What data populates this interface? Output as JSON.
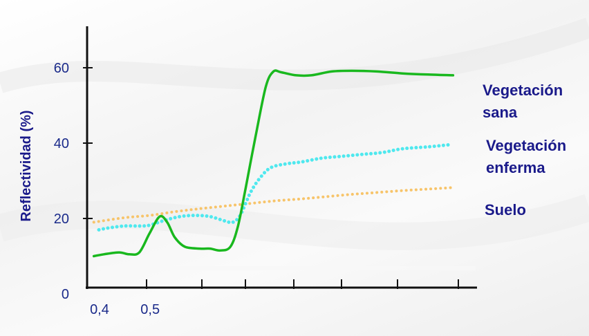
{
  "chart_data": {
    "type": "line",
    "ylabel": "Reflectividad (%)",
    "xlabel": "",
    "ylim": [
      0,
      65
    ],
    "yticks": [
      0,
      20,
      40,
      60
    ],
    "ytick_labels": [
      "0",
      "20",
      "40",
      "60"
    ],
    "xtick_labels": [
      {
        "x": 0.4,
        "label": "0,4"
      },
      {
        "x": 0.5,
        "label": "0,5"
      }
    ],
    "xlim": [
      0.385,
      1.15
    ],
    "grid": false,
    "series": [
      {
        "name": "Vegetación sana",
        "color": "#19b81e",
        "style": "solid",
        "points": [
          [
            0.39,
            10
          ],
          [
            0.41,
            10.5
          ],
          [
            0.44,
            11
          ],
          [
            0.46,
            10.5
          ],
          [
            0.48,
            11
          ],
          [
            0.5,
            16
          ],
          [
            0.52,
            20.5
          ],
          [
            0.535,
            19
          ],
          [
            0.55,
            15
          ],
          [
            0.57,
            12.5
          ],
          [
            0.6,
            12
          ],
          [
            0.62,
            12
          ],
          [
            0.64,
            11.5
          ],
          [
            0.66,
            12.5
          ],
          [
            0.675,
            18
          ],
          [
            0.69,
            28
          ],
          [
            0.71,
            42
          ],
          [
            0.73,
            55
          ],
          [
            0.745,
            59
          ],
          [
            0.76,
            58.8
          ],
          [
            0.79,
            58
          ],
          [
            0.82,
            58
          ],
          [
            0.86,
            59
          ],
          [
            0.9,
            59.2
          ],
          [
            0.95,
            59
          ],
          [
            1.0,
            58.5
          ],
          [
            1.05,
            58.2
          ],
          [
            1.1,
            58
          ]
        ]
      },
      {
        "name": "Vegetación enferma",
        "color": "#4fe8ee",
        "style": "dotted",
        "points": [
          [
            0.4,
            17
          ],
          [
            0.42,
            17.5
          ],
          [
            0.45,
            18
          ],
          [
            0.48,
            18
          ],
          [
            0.5,
            18.2
          ],
          [
            0.53,
            19.5
          ],
          [
            0.56,
            20.5
          ],
          [
            0.59,
            20.8
          ],
          [
            0.62,
            20.5
          ],
          [
            0.65,
            19.3
          ],
          [
            0.665,
            19
          ],
          [
            0.68,
            21
          ],
          [
            0.7,
            27
          ],
          [
            0.72,
            31
          ],
          [
            0.74,
            33.5
          ],
          [
            0.77,
            34.5
          ],
          [
            0.8,
            35
          ],
          [
            0.84,
            36
          ],
          [
            0.88,
            36.5
          ],
          [
            0.92,
            37
          ],
          [
            0.96,
            37.5
          ],
          [
            1.0,
            38.5
          ],
          [
            1.05,
            39
          ],
          [
            1.095,
            39.6
          ]
        ]
      },
      {
        "name": "Suelo",
        "color": "#f7c46a",
        "style": "dotted",
        "points": [
          [
            0.39,
            19
          ],
          [
            0.45,
            20.2
          ],
          [
            0.5,
            20.8
          ],
          [
            0.55,
            21.8
          ],
          [
            0.6,
            22.6
          ],
          [
            0.65,
            23.3
          ],
          [
            0.7,
            24
          ],
          [
            0.75,
            24.7
          ],
          [
            0.8,
            25.2
          ],
          [
            0.85,
            25.8
          ],
          [
            0.9,
            26.4
          ],
          [
            0.95,
            26.9
          ],
          [
            1.0,
            27.4
          ],
          [
            1.05,
            27.8
          ],
          [
            1.1,
            28.2
          ]
        ]
      }
    ],
    "legend": [
      {
        "lines": [
          "Vegetación",
          "sana"
        ],
        "series": "Vegetación sana"
      },
      {
        "lines": [
          "Vegetación",
          "enferma"
        ],
        "series": "Vegetación enferma"
      },
      {
        "lines": [
          "Suelo"
        ],
        "series": "Suelo"
      }
    ]
  }
}
